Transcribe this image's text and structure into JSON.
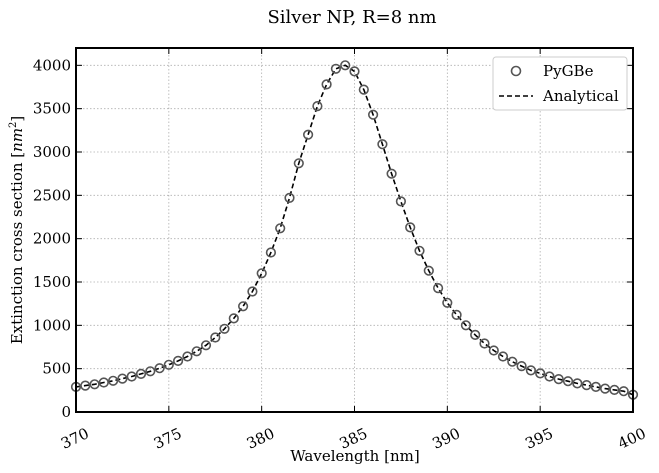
{
  "chart_data": {
    "type": "line",
    "title": "Silver NP, R=8 nm",
    "xlabel": "Wavelength [nm]",
    "ylabel_prefix": "Extinction cross section [",
    "ylabel_unit_base": "nm",
    "ylabel_unit_exp": "2",
    "ylabel_suffix": "]",
    "xlim": [
      370,
      400
    ],
    "ylim": [
      0,
      4200
    ],
    "xticks": [
      370,
      375,
      380,
      385,
      390,
      395,
      400
    ],
    "yticks": [
      0,
      500,
      1000,
      1500,
      2000,
      2500,
      3000,
      3500,
      4000
    ],
    "grid": true,
    "legend_position": "top-right",
    "series": [
      {
        "name": "PyGBe",
        "style": "open-circle-markers",
        "color": "#555555",
        "x": [
          370.0,
          370.5,
          371.0,
          371.5,
          372.0,
          372.5,
          373.0,
          373.5,
          374.0,
          374.5,
          375.0,
          375.5,
          376.0,
          376.5,
          377.0,
          377.5,
          378.0,
          378.5,
          379.0,
          379.5,
          380.0,
          380.5,
          381.0,
          381.5,
          382.0,
          382.5,
          383.0,
          383.5,
          384.0,
          384.5,
          385.0,
          385.5,
          386.0,
          386.5,
          387.0,
          387.5,
          388.0,
          388.5,
          389.0,
          389.5,
          390.0,
          390.5,
          391.0,
          391.5,
          392.0,
          392.5,
          393.0,
          393.5,
          394.0,
          394.5,
          395.0,
          395.5,
          396.0,
          396.5,
          397.0,
          397.5,
          398.0,
          398.5,
          399.0,
          399.5,
          400.0
        ],
        "y": [
          290,
          305,
          320,
          340,
          360,
          385,
          410,
          440,
          470,
          505,
          545,
          590,
          640,
          700,
          770,
          860,
          960,
          1080,
          1220,
          1390,
          1600,
          1840,
          2120,
          2470,
          2870,
          3200,
          3530,
          3780,
          3960,
          4000,
          3930,
          3720,
          3430,
          3090,
          2750,
          2430,
          2130,
          1860,
          1630,
          1430,
          1260,
          1120,
          1000,
          890,
          790,
          710,
          640,
          580,
          530,
          480,
          445,
          410,
          380,
          355,
          330,
          310,
          290,
          270,
          255,
          240,
          200
        ]
      },
      {
        "name": "Analytical",
        "style": "dashed-line",
        "color": "#000000",
        "x": [
          370.0,
          370.5,
          371.0,
          371.5,
          372.0,
          372.5,
          373.0,
          373.5,
          374.0,
          374.5,
          375.0,
          375.5,
          376.0,
          376.5,
          377.0,
          377.5,
          378.0,
          378.5,
          379.0,
          379.5,
          380.0,
          380.5,
          381.0,
          381.5,
          382.0,
          382.5,
          383.0,
          383.5,
          384.0,
          384.5,
          385.0,
          385.5,
          386.0,
          386.5,
          387.0,
          387.5,
          388.0,
          388.5,
          389.0,
          389.5,
          390.0,
          390.5,
          391.0,
          391.5,
          392.0,
          392.5,
          393.0,
          393.5,
          394.0,
          394.5,
          395.0,
          395.5,
          396.0,
          396.5,
          397.0,
          397.5,
          398.0,
          398.5,
          399.0,
          399.5,
          400.0
        ],
        "y": [
          290,
          305,
          320,
          340,
          360,
          385,
          410,
          440,
          470,
          505,
          545,
          590,
          640,
          700,
          770,
          860,
          960,
          1080,
          1220,
          1390,
          1600,
          1840,
          2120,
          2470,
          2870,
          3200,
          3530,
          3780,
          3960,
          4000,
          3930,
          3720,
          3430,
          3090,
          2750,
          2430,
          2130,
          1860,
          1630,
          1430,
          1260,
          1120,
          1000,
          890,
          790,
          710,
          640,
          580,
          530,
          480,
          445,
          410,
          380,
          355,
          330,
          310,
          290,
          270,
          255,
          240,
          200
        ]
      }
    ]
  }
}
